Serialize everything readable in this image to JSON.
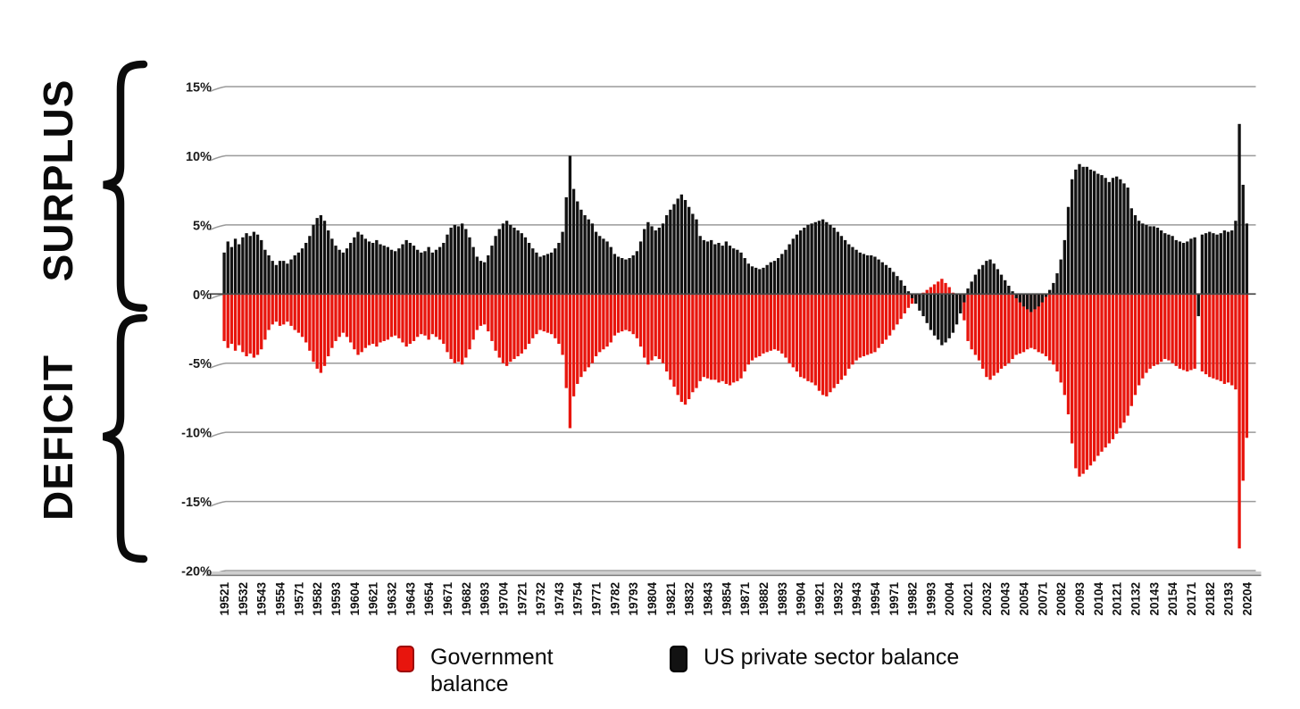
{
  "page": {
    "background": "#ffffff"
  },
  "side_labels": {
    "surplus": "SURPLUS",
    "deficit": "DEFICIT"
  },
  "legend": {
    "items": [
      {
        "label": "Government balance",
        "color": "#e8150d"
      },
      {
        "label": "US private sector balance",
        "color": "#121212"
      }
    ]
  },
  "chart_data": {
    "type": "bar",
    "title": "",
    "xlabel": "",
    "ylabel": "",
    "grid": true,
    "legend_position": "bottom",
    "y_axis": {
      "unit": "%",
      "max": 15,
      "min": -20,
      "ticks": [
        {
          "value": 15,
          "label": "15%"
        },
        {
          "value": 10,
          "label": "10%"
        },
        {
          "value": 5,
          "label": "5%"
        },
        {
          "value": 0,
          "label": "0%"
        },
        {
          "value": -5,
          "label": "-5%"
        },
        {
          "value": -10,
          "label": "-10%"
        },
        {
          "value": -15,
          "label": "-15%"
        },
        {
          "value": -20,
          "label": "-20%"
        }
      ]
    },
    "x_axis": {
      "start_quarter": "1952Q1",
      "end_quarter": "2020Q4",
      "n_quarters": 276,
      "label_every_n_quarters": 5,
      "labels_shown": [
        "19521",
        "19532",
        "19543",
        "19554",
        "19571",
        "19582",
        "19593",
        "19604",
        "19621",
        "19632",
        "19643",
        "19654",
        "19671",
        "19682",
        "19693",
        "19704",
        "19721",
        "19732",
        "19743",
        "19754",
        "19771",
        "19782",
        "19793",
        "19804",
        "19821",
        "19832",
        "19843",
        "19854",
        "19871",
        "19882",
        "19893",
        "19904",
        "19921",
        "19932",
        "19943",
        "19954",
        "19971",
        "19982",
        "19993",
        "20004",
        "20021",
        "20032",
        "20043",
        "20054",
        "20071",
        "20082",
        "20093",
        "20104",
        "20121",
        "20132",
        "20143",
        "20154",
        "20171",
        "20182",
        "20193",
        "20204"
      ]
    },
    "series": [
      {
        "name": "Government balance",
        "color": "#e8150d",
        "values": [
          -3.4,
          -3.9,
          -3.6,
          -4.1,
          -3.7,
          -4.2,
          -4.5,
          -4.3,
          -4.6,
          -4.4,
          -4.0,
          -3.3,
          -2.6,
          -2.2,
          -2.0,
          -2.3,
          -2.2,
          -2.0,
          -2.3,
          -2.6,
          -2.8,
          -3.1,
          -3.5,
          -4.1,
          -4.9,
          -5.4,
          -5.7,
          -5.2,
          -4.5,
          -3.9,
          -3.4,
          -3.1,
          -2.8,
          -3.1,
          -3.5,
          -4.0,
          -4.4,
          -4.2,
          -3.9,
          -3.7,
          -3.6,
          -3.8,
          -3.5,
          -3.4,
          -3.3,
          -3.1,
          -3.0,
          -3.2,
          -3.5,
          -3.8,
          -3.6,
          -3.4,
          -3.1,
          -2.9,
          -3.0,
          -3.3,
          -2.9,
          -3.1,
          -3.3,
          -3.6,
          -4.2,
          -4.7,
          -5.0,
          -4.9,
          -5.1,
          -4.6,
          -4.0,
          -3.3,
          -2.6,
          -2.3,
          -2.2,
          -2.7,
          -3.4,
          -4.1,
          -4.6,
          -5.0,
          -5.2,
          -4.9,
          -4.7,
          -4.5,
          -4.3,
          -4.0,
          -3.6,
          -3.2,
          -2.9,
          -2.6,
          -2.7,
          -2.8,
          -2.9,
          -3.2,
          -3.6,
          -4.4,
          -6.8,
          -9.7,
          -7.4,
          -6.5,
          -6.0,
          -5.6,
          -5.3,
          -5.0,
          -4.5,
          -4.2,
          -4.0,
          -3.8,
          -3.5,
          -3.0,
          -2.8,
          -2.7,
          -2.6,
          -2.7,
          -2.9,
          -3.2,
          -3.8,
          -4.6,
          -5.1,
          -4.8,
          -4.5,
          -4.7,
          -5.0,
          -5.6,
          -6.2,
          -6.7,
          -7.3,
          -7.8,
          -8.0,
          -7.6,
          -7.1,
          -6.8,
          -6.3,
          -6.0,
          -6.1,
          -6.2,
          -6.2,
          -6.4,
          -6.3,
          -6.5,
          -6.6,
          -6.4,
          -6.3,
          -6.1,
          -5.6,
          -5.1,
          -4.8,
          -4.6,
          -4.5,
          -4.3,
          -4.2,
          -4.1,
          -4.0,
          -4.1,
          -4.3,
          -4.6,
          -5.0,
          -5.3,
          -5.6,
          -6.0,
          -6.1,
          -6.3,
          -6.4,
          -6.6,
          -7.0,
          -7.3,
          -7.4,
          -7.1,
          -6.8,
          -6.5,
          -6.2,
          -5.9,
          -5.4,
          -5.1,
          -4.8,
          -4.6,
          -4.5,
          -4.4,
          -4.3,
          -4.2,
          -3.9,
          -3.6,
          -3.3,
          -3.0,
          -2.6,
          -2.2,
          -1.8,
          -1.4,
          -1.0,
          -0.7,
          -0.4,
          -0.2,
          0.1,
          0.3,
          0.5,
          0.7,
          0.9,
          1.1,
          0.8,
          0.5,
          0.1,
          -0.4,
          -1.1,
          -1.9,
          -3.4,
          -4.0,
          -4.4,
          -4.8,
          -5.4,
          -6.0,
          -6.2,
          -5.9,
          -5.7,
          -5.4,
          -5.2,
          -5.0,
          -4.7,
          -4.4,
          -4.3,
          -4.2,
          -4.0,
          -3.9,
          -4.0,
          -4.2,
          -4.3,
          -4.5,
          -4.8,
          -5.1,
          -5.6,
          -6.4,
          -7.3,
          -8.7,
          -10.8,
          -12.6,
          -13.2,
          -13.0,
          -12.7,
          -12.4,
          -12.1,
          -11.7,
          -11.4,
          -11.1,
          -10.8,
          -10.5,
          -10.1,
          -9.7,
          -9.3,
          -8.8,
          -8.1,
          -7.3,
          -6.6,
          -6.1,
          -5.7,
          -5.4,
          -5.2,
          -5.1,
          -4.9,
          -4.7,
          -4.8,
          -5.0,
          -5.2,
          -5.4,
          -5.5,
          -5.6,
          -5.5,
          -5.4,
          -0.1,
          -5.6,
          -5.8,
          -6.0,
          -6.1,
          -6.2,
          -6.3,
          -6.5,
          -6.4,
          -6.6,
          -6.9,
          -18.4,
          -13.5,
          -10.4
        ]
      },
      {
        "name": "US private sector balance",
        "color": "#121212",
        "values": [
          3.0,
          3.8,
          3.4,
          4.0,
          3.6,
          4.1,
          4.4,
          4.2,
          4.5,
          4.3,
          3.9,
          3.2,
          2.8,
          2.4,
          2.1,
          2.4,
          2.4,
          2.2,
          2.5,
          2.8,
          3.0,
          3.3,
          3.7,
          4.2,
          5.0,
          5.5,
          5.7,
          5.3,
          4.6,
          4.0,
          3.5,
          3.2,
          3.0,
          3.3,
          3.7,
          4.1,
          4.5,
          4.3,
          4.0,
          3.8,
          3.7,
          3.9,
          3.6,
          3.5,
          3.4,
          3.2,
          3.1,
          3.3,
          3.6,
          3.9,
          3.7,
          3.5,
          3.2,
          3.0,
          3.1,
          3.4,
          3.0,
          3.2,
          3.4,
          3.7,
          4.3,
          4.8,
          5.0,
          4.9,
          5.1,
          4.7,
          4.1,
          3.4,
          2.7,
          2.4,
          2.3,
          2.8,
          3.5,
          4.2,
          4.7,
          5.1,
          5.3,
          5.0,
          4.8,
          4.6,
          4.4,
          4.1,
          3.7,
          3.3,
          3.0,
          2.7,
          2.8,
          2.9,
          3.0,
          3.3,
          3.7,
          4.5,
          7.0,
          10.0,
          7.6,
          6.7,
          6.1,
          5.7,
          5.4,
          5.1,
          4.5,
          4.2,
          4.0,
          3.8,
          3.4,
          2.9,
          2.7,
          2.6,
          2.5,
          2.6,
          2.8,
          3.1,
          3.8,
          4.7,
          5.2,
          4.9,
          4.6,
          4.8,
          5.1,
          5.7,
          6.1,
          6.5,
          6.9,
          7.2,
          6.8,
          6.3,
          5.8,
          5.4,
          4.2,
          3.9,
          3.8,
          3.9,
          3.6,
          3.7,
          3.5,
          3.8,
          3.5,
          3.3,
          3.2,
          3.0,
          2.6,
          2.2,
          2.0,
          1.9,
          1.8,
          1.9,
          2.1,
          2.3,
          2.4,
          2.6,
          2.9,
          3.2,
          3.6,
          4.0,
          4.3,
          4.6,
          4.8,
          5.0,
          5.1,
          5.2,
          5.3,
          5.4,
          5.2,
          5.0,
          4.8,
          4.5,
          4.2,
          3.9,
          3.6,
          3.4,
          3.2,
          3.0,
          2.9,
          2.8,
          2.8,
          2.7,
          2.5,
          2.3,
          2.1,
          1.9,
          1.6,
          1.3,
          1.0,
          0.6,
          0.2,
          -0.3,
          -0.7,
          -1.2,
          -1.6,
          -2.1,
          -2.6,
          -3.0,
          -3.3,
          -3.7,
          -3.5,
          -3.2,
          -2.8,
          -2.2,
          -1.4,
          -0.6,
          0.4,
          0.9,
          1.4,
          1.8,
          2.1,
          2.4,
          2.5,
          2.2,
          1.8,
          1.4,
          1.0,
          0.6,
          0.2,
          -0.3,
          -0.6,
          -0.9,
          -1.1,
          -1.3,
          -1.1,
          -0.9,
          -0.6,
          -0.2,
          0.3,
          0.8,
          1.5,
          2.5,
          3.9,
          6.3,
          8.3,
          9.0,
          9.4,
          9.2,
          9.2,
          9.0,
          8.9,
          8.7,
          8.6,
          8.4,
          8.1,
          8.4,
          8.5,
          8.3,
          8.0,
          7.7,
          6.2,
          5.7,
          5.3,
          5.1,
          5.0,
          4.9,
          4.9,
          4.8,
          4.6,
          4.4,
          4.3,
          4.2,
          3.9,
          3.8,
          3.7,
          3.8,
          4.0,
          4.1,
          -1.6,
          4.3,
          4.4,
          4.5,
          4.4,
          4.3,
          4.4,
          4.6,
          4.5,
          4.6,
          5.3,
          12.3,
          7.9,
          5.1
        ]
      }
    ]
  }
}
